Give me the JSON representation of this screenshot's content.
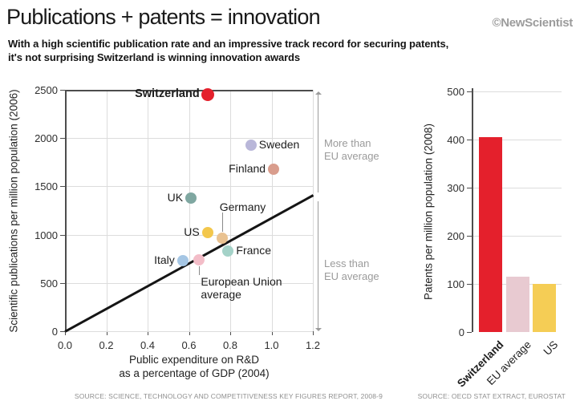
{
  "header": {
    "title": "Publications + patents = innovation",
    "copyright": "©NewScientist",
    "subtitle_line1": "With a high scientific publication rate and an impressive track record for securing patents,",
    "subtitle_line2": "it's not surprising Switzerland is winning innovation awards"
  },
  "scatter": {
    "ylabel": "Scientific publications per million population (2006)",
    "xlabel_line1": "Public expenditure on R&D",
    "xlabel_line2": "as a percentage of GDP (2004)",
    "more_line1": "More than",
    "more_line2": "EU average",
    "less_line1": "Less than",
    "less_line2": "EU average",
    "source": "SOURCE: SCIENCE, TECHNOLOGY AND COMPETITIVENESS KEY FIGURES REPORT, 2008-9"
  },
  "bar": {
    "ylabel": "Patents per million population (2008)",
    "source": "SOURCE: OECD STAT EXTRACT, EUROSTAT"
  },
  "colors": {
    "accent_red": "#e4202c",
    "grid": "#dcdcdc",
    "axis": "#4d4d4d",
    "annotation_grey": "#9b9b9b"
  },
  "chart_data": [
    {
      "type": "scatter",
      "title": "Publications + patents = innovation",
      "xlabel": "Public expenditure on R&D as a percentage of GDP (2004)",
      "ylabel": "Scientific publications per million population (2006)",
      "xlim": [
        0,
        1.2
      ],
      "ylim": [
        0,
        2500
      ],
      "xticks": [
        "0.0",
        "0.2",
        "0.4",
        "0.6",
        "0.8",
        "1.0",
        "1.2"
      ],
      "yticks": [
        0,
        500,
        1000,
        1500,
        2000,
        2500
      ],
      "grid": true,
      "points": [
        {
          "label": "Switzerland",
          "x": 0.69,
          "y": 2450,
          "color": "#e4202c",
          "bold": true,
          "label_side": "left"
        },
        {
          "label": "Sweden",
          "x": 0.9,
          "y": 1925,
          "color": "#b9b7d9",
          "bold": false,
          "label_side": "right"
        },
        {
          "label": "Finland",
          "x": 1.01,
          "y": 1675,
          "color": "#d99d8d",
          "bold": false,
          "label_side": "left"
        },
        {
          "label": "UK",
          "x": 0.61,
          "y": 1375,
          "color": "#7fa7a1",
          "bold": false,
          "label_side": "left"
        },
        {
          "label": "US",
          "x": 0.69,
          "y": 1020,
          "color": "#f3c74c",
          "bold": false,
          "label_side": "left"
        },
        {
          "label": "Germany",
          "x": 0.76,
          "y": 960,
          "color": "#e9c291",
          "bold": false,
          "label_side": "above"
        },
        {
          "label": "France",
          "x": 0.79,
          "y": 830,
          "color": "#a4d2c8",
          "bold": false,
          "label_side": "right"
        },
        {
          "label": "Italy",
          "x": 0.57,
          "y": 730,
          "color": "#a5c6e4",
          "bold": false,
          "label_side": "left"
        },
        {
          "label": "European Union average",
          "x": 0.65,
          "y": 740,
          "color": "#f3bdc8",
          "bold": false,
          "label_side": "below"
        }
      ],
      "reference_line": {
        "from": [
          0,
          0
        ],
        "to": [
          1.2,
          1410
        ]
      },
      "annotations": [
        "More than EU average",
        "Less than EU average"
      ]
    },
    {
      "type": "bar",
      "categories": [
        "Switzerland",
        "EU average",
        "US"
      ],
      "values": [
        405,
        115,
        100
      ],
      "colors": [
        "#e4202c",
        "#e8cad1",
        "#f5cd55"
      ],
      "bold_categories": [
        true,
        false,
        false
      ],
      "title": "",
      "xlabel": "",
      "ylabel": "Patents per million population (2008)",
      "ylim": [
        0,
        500
      ],
      "yticks": [
        0,
        100,
        200,
        300,
        400,
        500
      ],
      "grid": true
    }
  ]
}
